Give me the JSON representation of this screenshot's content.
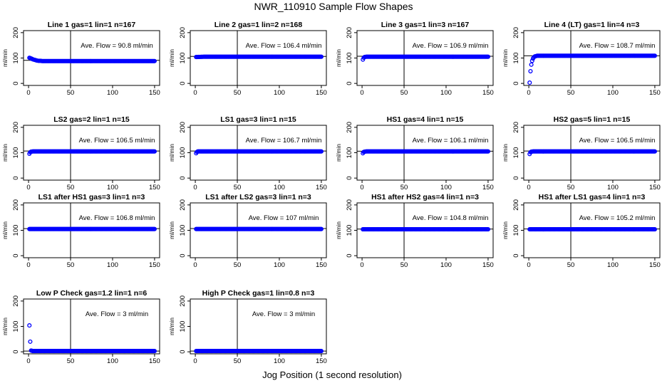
{
  "figure": {
    "title": "NWR_110910  Sample Flow Shapes",
    "xlabel": "Jog Position (1 second resolution)"
  },
  "colors": {
    "points": "#0000ff",
    "axes": "#000000"
  },
  "chart_data": [
    {
      "type": "scatter",
      "title": "Line 1 gas=1 lin=1 n=167",
      "ylabel": "ml/min",
      "xlim": [
        0,
        150
      ],
      "ylim": [
        0,
        200
      ],
      "xticks": [
        0,
        50,
        100,
        150
      ],
      "yticks": [
        0,
        100,
        200
      ],
      "vline": 50,
      "hline": 90.8,
      "annotation": "Ave. Flow = 90.8  ml/min",
      "series": [
        {
          "x": [
            1,
            2,
            3,
            4,
            5,
            6,
            7,
            8,
            9,
            10,
            12,
            14,
            16,
            20,
            30,
            40,
            50,
            60,
            70,
            80,
            90,
            100,
            110,
            120,
            130,
            140,
            150
          ],
          "y": [
            101,
            100,
            98,
            97,
            95,
            94,
            93,
            92,
            91,
            90,
            89,
            89,
            88,
            88,
            88,
            88,
            88,
            88,
            88,
            88,
            88,
            88,
            88,
            88,
            88,
            88,
            88
          ]
        }
      ]
    },
    {
      "type": "scatter",
      "title": "Line 2 gas=1 lin=2 n=168",
      "ylabel": "ml/min",
      "xlim": [
        0,
        150
      ],
      "ylim": [
        0,
        200
      ],
      "xticks": [
        0,
        50,
        100,
        150
      ],
      "yticks": [
        0,
        100,
        200
      ],
      "vline": 50,
      "hline": 106.4,
      "annotation": "Ave. Flow = 106.4  ml/min",
      "series": [
        {
          "x": [
            1,
            10,
            20,
            30,
            40,
            50,
            60,
            70,
            80,
            90,
            100,
            110,
            120,
            130,
            140,
            150
          ],
          "y": [
            104,
            105,
            105,
            105,
            105,
            105,
            105,
            105,
            105,
            105,
            105,
            105,
            105,
            105,
            105,
            105
          ]
        }
      ]
    },
    {
      "type": "scatter",
      "title": "Line 3 gas=1 lin=3 n=167",
      "ylabel": "ml/min",
      "xlim": [
        0,
        150
      ],
      "ylim": [
        0,
        200
      ],
      "xticks": [
        0,
        50,
        100,
        150
      ],
      "yticks": [
        0,
        100,
        200
      ],
      "vline": 50,
      "hline": 106.9,
      "annotation": "Ave. Flow = 106.9  ml/min",
      "series": [
        {
          "x": [
            1,
            2,
            3,
            5,
            10,
            20,
            30,
            40,
            50,
            60,
            70,
            80,
            90,
            100,
            110,
            120,
            130,
            140,
            150
          ],
          "y": [
            94,
            101,
            104,
            105,
            105,
            105,
            105,
            105,
            105,
            105,
            105,
            105,
            105,
            105,
            105,
            105,
            105,
            105,
            105
          ]
        }
      ]
    },
    {
      "type": "scatter",
      "title": "Line 4 (LT) gas=1 lin=4 n=3",
      "ylabel": "ml/min",
      "xlim": [
        0,
        150
      ],
      "ylim": [
        0,
        200
      ],
      "xticks": [
        0,
        50,
        100,
        150
      ],
      "yticks": [
        0,
        100,
        200
      ],
      "vline": 50,
      "hline": 108.7,
      "annotation": "Ave. Flow = 108.7  ml/min",
      "series": [
        {
          "x": [
            1,
            2,
            3,
            4,
            5,
            6,
            7,
            8,
            9,
            10,
            12,
            15,
            20,
            30,
            40,
            50,
            60,
            70,
            80,
            90,
            100,
            110,
            120,
            130,
            140,
            150
          ],
          "y": [
            3,
            48,
            74,
            89,
            98,
            103,
            106,
            107,
            108,
            109,
            109,
            109,
            109,
            109,
            109,
            109,
            109,
            109,
            109,
            109,
            109,
            109,
            109,
            109,
            109,
            109
          ]
        }
      ]
    },
    {
      "type": "scatter",
      "title": "LS2 gas=2 lin=1 n=15",
      "ylabel": "ml/min",
      "xlim": [
        0,
        150
      ],
      "ylim": [
        0,
        200
      ],
      "xticks": [
        0,
        50,
        100,
        150
      ],
      "yticks": [
        0,
        100,
        200
      ],
      "vline": 50,
      "hline": 106.5,
      "annotation": "Ave. Flow = 106.5  ml/min",
      "series": [
        {
          "x": [
            1,
            2,
            3,
            5,
            10,
            20,
            30,
            40,
            50,
            60,
            70,
            80,
            90,
            100,
            110,
            120,
            130,
            140,
            150
          ],
          "y": [
            96,
            102,
            104,
            105,
            105,
            105,
            105,
            105,
            105,
            105,
            105,
            105,
            105,
            105,
            105,
            105,
            105,
            105,
            105
          ]
        }
      ]
    },
    {
      "type": "scatter",
      "title": "LS1 gas=3 lin=1 n=15",
      "ylabel": "ml/min",
      "xlim": [
        0,
        150
      ],
      "ylim": [
        0,
        200
      ],
      "xticks": [
        0,
        50,
        100,
        150
      ],
      "yticks": [
        0,
        100,
        200
      ],
      "vline": 50,
      "hline": 106.7,
      "annotation": "Ave. Flow = 106.7  ml/min",
      "series": [
        {
          "x": [
            1,
            2,
            3,
            5,
            10,
            20,
            30,
            40,
            50,
            60,
            70,
            80,
            90,
            100,
            110,
            120,
            130,
            140,
            150
          ],
          "y": [
            98,
            103,
            105,
            105,
            105,
            105,
            105,
            105,
            105,
            105,
            105,
            105,
            105,
            105,
            105,
            105,
            105,
            105,
            105
          ]
        }
      ]
    },
    {
      "type": "scatter",
      "title": "HS1 gas=4 lin=1 n=15",
      "ylabel": "ml/min",
      "xlim": [
        0,
        150
      ],
      "ylim": [
        0,
        200
      ],
      "xticks": [
        0,
        50,
        100,
        150
      ],
      "yticks": [
        0,
        100,
        200
      ],
      "vline": 50,
      "hline": 106.1,
      "annotation": "Ave. Flow = 106.1  ml/min",
      "series": [
        {
          "x": [
            1,
            2,
            3,
            5,
            10,
            20,
            30,
            40,
            50,
            60,
            70,
            80,
            90,
            100,
            110,
            120,
            130,
            140,
            150
          ],
          "y": [
            98,
            103,
            104,
            105,
            105,
            105,
            105,
            105,
            105,
            105,
            105,
            105,
            105,
            105,
            105,
            105,
            105,
            105,
            105
          ]
        }
      ]
    },
    {
      "type": "scatter",
      "title": "HS2 gas=5 lin=1 n=15",
      "ylabel": "ml/min",
      "xlim": [
        0,
        150
      ],
      "ylim": [
        0,
        200
      ],
      "xticks": [
        0,
        50,
        100,
        150
      ],
      "yticks": [
        0,
        100,
        200
      ],
      "vline": 50,
      "hline": 106.5,
      "annotation": "Ave. Flow = 106.5  ml/min",
      "series": [
        {
          "x": [
            1,
            2,
            3,
            5,
            10,
            20,
            30,
            40,
            50,
            60,
            70,
            80,
            90,
            100,
            110,
            120,
            130,
            140,
            150
          ],
          "y": [
            95,
            102,
            104,
            105,
            105,
            105,
            105,
            105,
            105,
            105,
            105,
            105,
            105,
            105,
            105,
            105,
            105,
            105,
            105
          ]
        }
      ]
    },
    {
      "type": "scatter",
      "title": "LS1 after HS1 gas=3 lin=1 n=3",
      "ylabel": "ml/min",
      "xlim": [
        0,
        150
      ],
      "ylim": [
        0,
        200
      ],
      "xticks": [
        0,
        50,
        100,
        150
      ],
      "yticks": [
        0,
        100,
        200
      ],
      "vline": 50,
      "hline": 106.8,
      "annotation": "Ave. Flow = 106.8  ml/min",
      "series": [
        {
          "x": [
            1,
            10,
            20,
            30,
            40,
            50,
            60,
            70,
            80,
            90,
            100,
            110,
            120,
            130,
            140,
            150
          ],
          "y": [
            105,
            105,
            105,
            105,
            105,
            105,
            105,
            105,
            105,
            105,
            105,
            105,
            105,
            105,
            105,
            105
          ]
        }
      ]
    },
    {
      "type": "scatter",
      "title": "LS1 after LS2 gas=3 lin=1 n=3",
      "ylabel": "ml/min",
      "xlim": [
        0,
        150
      ],
      "ylim": [
        0,
        200
      ],
      "xticks": [
        0,
        50,
        100,
        150
      ],
      "yticks": [
        0,
        100,
        200
      ],
      "vline": 50,
      "hline": 107,
      "annotation": "Ave. Flow = 107  ml/min",
      "series": [
        {
          "x": [
            1,
            10,
            20,
            30,
            40,
            50,
            60,
            70,
            80,
            90,
            100,
            110,
            120,
            130,
            140,
            150
          ],
          "y": [
            105,
            105,
            105,
            105,
            105,
            105,
            105,
            105,
            105,
            105,
            105,
            105,
            105,
            105,
            105,
            105
          ]
        }
      ]
    },
    {
      "type": "scatter",
      "title": "HS1 after HS2 gas=4 lin=1 n=3",
      "ylabel": "ml/min",
      "xlim": [
        0,
        150
      ],
      "ylim": [
        0,
        200
      ],
      "xticks": [
        0,
        50,
        100,
        150
      ],
      "yticks": [
        0,
        100,
        200
      ],
      "vline": 50,
      "hline": 104.8,
      "annotation": "Ave. Flow = 104.8  ml/min",
      "series": [
        {
          "x": [
            1,
            10,
            20,
            30,
            40,
            50,
            60,
            70,
            80,
            90,
            100,
            110,
            120,
            130,
            140,
            150
          ],
          "y": [
            104,
            104,
            104,
            104,
            104,
            104,
            104,
            104,
            104,
            104,
            104,
            104,
            104,
            104,
            104,
            104
          ]
        }
      ]
    },
    {
      "type": "scatter",
      "title": "HS1 after LS1 gas=4 lin=1 n=3",
      "ylabel": "ml/min",
      "xlim": [
        0,
        150
      ],
      "ylim": [
        0,
        200
      ],
      "xticks": [
        0,
        50,
        100,
        150
      ],
      "yticks": [
        0,
        100,
        200
      ],
      "vline": 50,
      "hline": 105.2,
      "annotation": "Ave. Flow = 105.2  ml/min",
      "series": [
        {
          "x": [
            1,
            10,
            20,
            30,
            40,
            50,
            60,
            70,
            80,
            90,
            100,
            110,
            120,
            130,
            140,
            150
          ],
          "y": [
            104,
            104,
            104,
            104,
            104,
            104,
            104,
            104,
            104,
            104,
            104,
            104,
            104,
            104,
            104,
            104
          ]
        }
      ]
    },
    {
      "type": "scatter",
      "title": "Low P Check gas=1.2 lin=1 n=6",
      "ylabel": "ml/min",
      "xlim": [
        0,
        150
      ],
      "ylim": [
        0,
        200
      ],
      "xticks": [
        0,
        50,
        100,
        150
      ],
      "yticks": [
        0,
        100,
        200
      ],
      "vline": 50,
      "hline": 3,
      "annotation": "Ave. Flow = 3  ml/min",
      "series": [
        {
          "x": [
            1,
            2,
            3,
            5,
            10,
            20,
            30,
            40,
            50,
            60,
            70,
            80,
            90,
            100,
            110,
            120,
            130,
            140,
            150
          ],
          "y": [
            104,
            40,
            5,
            3,
            3,
            3,
            3,
            3,
            3,
            3,
            3,
            3,
            3,
            3,
            3,
            3,
            3,
            3,
            3
          ]
        }
      ]
    },
    {
      "type": "scatter",
      "title": "High P Check gas=1 lin=0.8 n=3",
      "ylabel": "ml/min",
      "xlim": [
        0,
        150
      ],
      "ylim": [
        0,
        200
      ],
      "xticks": [
        0,
        50,
        100,
        150
      ],
      "yticks": [
        0,
        100,
        200
      ],
      "vline": 50,
      "hline": 3,
      "annotation": "Ave. Flow = 3  ml/min",
      "series": [
        {
          "x": [
            1,
            10,
            20,
            30,
            40,
            50,
            60,
            70,
            80,
            90,
            100,
            110,
            120,
            130,
            140,
            150
          ],
          "y": [
            3,
            3,
            3,
            3,
            3,
            3,
            3,
            3,
            3,
            3,
            3,
            3,
            3,
            3,
            3,
            3
          ]
        }
      ]
    }
  ]
}
